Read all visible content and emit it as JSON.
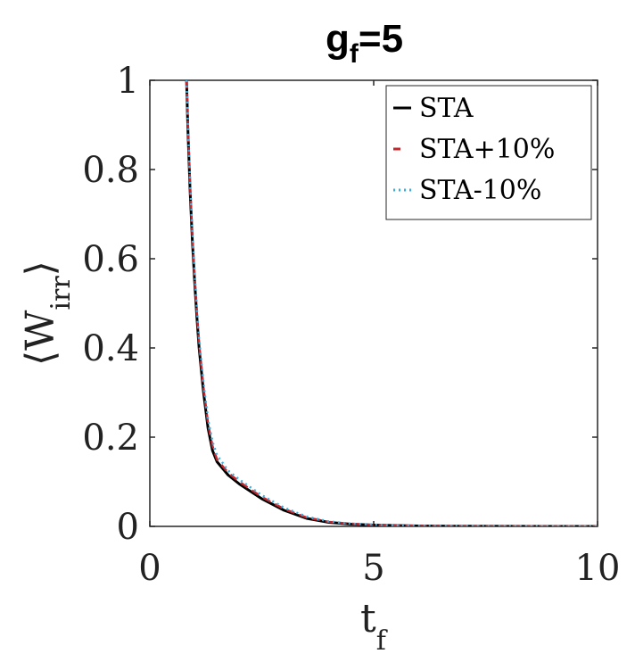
{
  "chart_data": {
    "type": "line",
    "title": "g",
    "title_subscript": "f",
    "title_suffix": "=5",
    "xlabel": "t",
    "xlabel_subscript": "f",
    "ylabel_left": "⟨W",
    "ylabel_subscript": "irr",
    "ylabel_right": "⟩",
    "xlim": [
      0,
      10
    ],
    "ylim": [
      0,
      1
    ],
    "xticks": [
      0,
      5,
      10
    ],
    "xtick_labels": [
      "0",
      "5",
      "10"
    ],
    "yticks": [
      0,
      0.2,
      0.4,
      0.6,
      0.8,
      1
    ],
    "ytick_labels": [
      "0",
      "0.2",
      "0.4",
      "0.6",
      "0.8",
      "1"
    ],
    "grid": false,
    "legend_position": "top-right",
    "series": [
      {
        "name": "STA",
        "color": "#000000",
        "style": "solid",
        "x": [
          0.82,
          0.85,
          0.9,
          0.95,
          1.0,
          1.05,
          1.1,
          1.2,
          1.3,
          1.4,
          1.5,
          1.75,
          2.0,
          2.5,
          3.0,
          3.5,
          4.0,
          4.5,
          5.0,
          5.5,
          6.0,
          7.0,
          8.0,
          9.0,
          10.0
        ],
        "y": [
          1.0,
          0.89,
          0.75,
          0.64,
          0.55,
          0.47,
          0.4,
          0.3,
          0.22,
          0.17,
          0.145,
          0.115,
          0.095,
          0.062,
          0.036,
          0.018,
          0.009,
          0.005,
          0.003,
          0.002,
          0.001,
          0.0005,
          0.0002,
          0.0001,
          0.0
        ]
      },
      {
        "name": "STA+10%",
        "color": "#c0282e",
        "style": "dashed",
        "x": [
          0.82,
          0.85,
          0.9,
          0.95,
          1.0,
          1.05,
          1.1,
          1.2,
          1.3,
          1.4,
          1.5,
          1.75,
          2.0,
          2.5,
          3.0,
          3.5,
          4.0,
          4.5,
          5.0,
          5.5,
          6.0,
          7.0,
          8.0,
          9.0,
          10.0
        ],
        "y": [
          1.0,
          0.9,
          0.76,
          0.65,
          0.56,
          0.48,
          0.41,
          0.31,
          0.23,
          0.18,
          0.15,
          0.12,
          0.1,
          0.066,
          0.039,
          0.02,
          0.01,
          0.006,
          0.003,
          0.002,
          0.001,
          0.0005,
          0.0002,
          0.0001,
          0.0
        ]
      },
      {
        "name": "STA-10%",
        "color": "#3aaee0",
        "style": "dotted",
        "x": [
          0.82,
          0.85,
          0.9,
          0.95,
          1.0,
          1.05,
          1.1,
          1.2,
          1.3,
          1.4,
          1.5,
          1.75,
          2.0,
          2.5,
          3.0,
          3.5,
          4.0,
          4.5,
          5.0,
          5.5,
          6.0,
          7.0,
          8.0,
          9.0,
          10.0
        ],
        "y": [
          1.0,
          0.9,
          0.77,
          0.66,
          0.57,
          0.49,
          0.42,
          0.32,
          0.24,
          0.19,
          0.16,
          0.125,
          0.105,
          0.07,
          0.042,
          0.022,
          0.011,
          0.006,
          0.004,
          0.002,
          0.001,
          0.0005,
          0.0002,
          0.0001,
          0.0
        ]
      }
    ]
  }
}
